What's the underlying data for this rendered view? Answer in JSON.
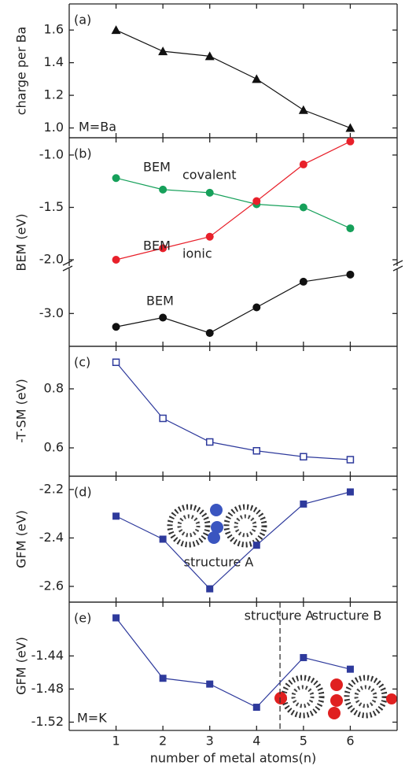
{
  "chart_data": [
    {
      "type": "line",
      "label": "(a)",
      "ylabel": "charge per Ba",
      "notes": [
        {
          "text": "M=Ba",
          "color": "#2b2b9a"
        }
      ],
      "x": [
        1,
        2,
        3,
        4,
        5,
        6
      ],
      "xlim": [
        0,
        7
      ],
      "xticks": [
        1,
        2,
        3,
        4,
        5,
        6
      ],
      "ylim": [
        0.94,
        1.76
      ],
      "yticks": [
        {
          "value": 1,
          "label": "1.0"
        },
        1.2,
        1.4,
        1.6
      ],
      "series": [
        {
          "color": "#111111",
          "marker": "triangle",
          "values": [
            1.6,
            1.47,
            1.44,
            1.3,
            1.11,
            1.0
          ]
        }
      ]
    },
    {
      "type": "line",
      "label": "(b)",
      "ylabel": "BEM  (eV)",
      "x": [
        1,
        2,
        3,
        4,
        5,
        6
      ],
      "xlim": [
        0,
        7
      ],
      "xticks": [
        1,
        2,
        3,
        4,
        5,
        6
      ],
      "ylim": [
        -2.06,
        -0.835
      ],
      "yticks": [
        {
          "value": -2,
          "label": "-2.0"
        },
        -1.5,
        {
          "value": -1,
          "label": "-1.0"
        }
      ],
      "series": [
        {
          "name": "BEM",
          "subscript": "covalent",
          "color": "#16a05a",
          "marker": "circle",
          "values": [
            -1.22,
            -1.33,
            -1.36,
            -1.47,
            -1.5,
            -1.7
          ]
        },
        {
          "name": "BEM",
          "subscript": "ionic",
          "color": "#e8202a",
          "marker": "circle",
          "values": [
            -2.0,
            -1.89,
            -1.78,
            -1.44,
            -1.09,
            -0.87
          ]
        }
      ]
    },
    {
      "type": "line",
      "x": [
        1,
        2,
        3,
        4,
        5,
        6
      ],
      "xlim": [
        0,
        7
      ],
      "xticks": [
        1,
        2,
        3,
        4,
        5,
        6
      ],
      "ylim": [
        -3.32,
        -2.56
      ],
      "yticks": [
        {
          "value": -3,
          "label": "-3.0"
        }
      ],
      "series": [
        {
          "name": "BEM",
          "color": "#111111",
          "marker": "circle",
          "values": [
            -3.13,
            -3.04,
            -3.19,
            -2.94,
            -2.69,
            -2.62
          ]
        }
      ]
    },
    {
      "type": "line",
      "label": "(c)",
      "ylabel": "-T·SM (eV)",
      "x": [
        1,
        2,
        3,
        4,
        5,
        6
      ],
      "xlim": [
        0,
        7
      ],
      "xticks": [
        1,
        2,
        3,
        4,
        5,
        6
      ],
      "ylim": [
        0.504,
        0.944
      ],
      "yticks": [
        0.6,
        0.8
      ],
      "series": [
        {
          "color": "#2e3a9c",
          "marker": "square-open",
          "values": [
            0.89,
            0.7,
            0.62,
            0.59,
            0.57,
            0.56
          ]
        }
      ]
    },
    {
      "type": "line",
      "label": "(d)",
      "ylabel": "GFM  (eV)",
      "notes": [
        {
          "text": "structure A",
          "color": "#222222"
        }
      ],
      "x": [
        1,
        2,
        3,
        4,
        5,
        6
      ],
      "xlim": [
        0,
        7
      ],
      "xticks": [
        1,
        2,
        3,
        4,
        5,
        6
      ],
      "ylim": [
        -2.665,
        -2.145
      ],
      "yticks": [
        -2.6,
        -2.4,
        -2.2
      ],
      "series": [
        {
          "color": "#2e3a9c",
          "marker": "square",
          "values": [
            -2.31,
            -2.405,
            -2.61,
            -2.43,
            -2.26,
            -2.21
          ]
        }
      ]
    },
    {
      "type": "line",
      "label": "(e)",
      "ylabel": "GFM  (eV)",
      "xlabel": "number of metal atoms(n)",
      "notes": [
        {
          "text": "structure A",
          "color": "#222222"
        },
        {
          "text": "structure B",
          "color": "#222222"
        },
        {
          "text": "M=K",
          "color": "#e8202a"
        }
      ],
      "vline_x": 4.5,
      "x": [
        1,
        2,
        3,
        4,
        5,
        6
      ],
      "xlim": [
        0,
        7
      ],
      "xticks": [
        1,
        2,
        3,
        4,
        5,
        6
      ],
      "ylim": [
        -1.53,
        -1.375
      ],
      "yticks": [
        -1.52,
        -1.48,
        -1.44
      ],
      "series": [
        {
          "color": "#2e3a9c",
          "marker": "square",
          "values": [
            -1.394,
            -1.467,
            -1.474,
            -1.502,
            -1.442,
            -1.456
          ]
        }
      ]
    }
  ]
}
